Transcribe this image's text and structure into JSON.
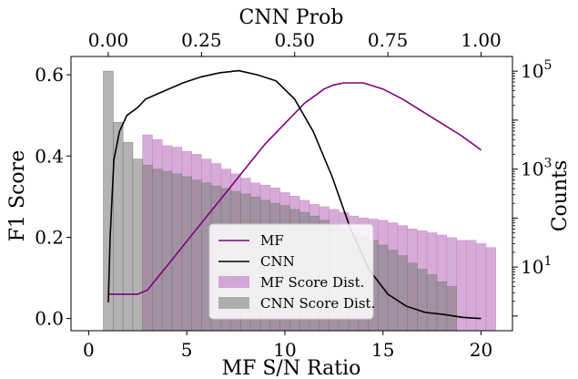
{
  "chart_data": {
    "type": "bar",
    "x_label": "MF S/N Ratio",
    "y_label_left": "F1 Score",
    "y_label_right": "Counts",
    "x_label_top": "CNN Prob",
    "x_ticks": [
      "0",
      "5",
      "10",
      "15",
      "20"
    ],
    "y_ticks_left": [
      "0.0",
      "0.2",
      "0.4",
      "0.6"
    ],
    "x_ticks_top": [
      "0.00",
      "0.25",
      "0.50",
      "0.75",
      "1.00"
    ],
    "y_ticks_right": [
      {
        "base": "10",
        "exp": "1"
      },
      {
        "base": "10",
        "exp": "3"
      },
      {
        "base": "10",
        "exp": "5"
      }
    ],
    "xlim": [
      -0.9,
      21.6
    ],
    "ylim_left": [
      -0.03,
      0.645
    ],
    "ylim_right_log10": [
      -0.3,
      5.3
    ],
    "legend_position": "lower-center",
    "series": [
      {
        "name": "MF",
        "kind": "line",
        "axis": "left",
        "color": "#800080",
        "x": [
          1.0,
          2.5,
          3.0,
          3.5,
          4.0,
          5.0,
          6.0,
          7.0,
          8.0,
          9.0,
          10.0,
          11.0,
          12.0,
          12.5,
          13.0,
          14.0,
          15.0,
          16.0,
          17.0,
          18.0,
          19.0,
          20.0
        ],
        "y": [
          0.06,
          0.06,
          0.07,
          0.1,
          0.13,
          0.19,
          0.25,
          0.31,
          0.37,
          0.43,
          0.48,
          0.53,
          0.565,
          0.575,
          0.58,
          0.58,
          0.565,
          0.54,
          0.51,
          0.48,
          0.45,
          0.415
        ]
      },
      {
        "name": "CNN",
        "kind": "line",
        "axis": "top-left",
        "color": "#000000",
        "x": [
          0.0,
          0.005,
          0.015,
          0.03,
          0.05,
          0.08,
          0.1,
          0.15,
          0.2,
          0.25,
          0.3,
          0.35,
          0.4,
          0.45,
          0.5,
          0.55,
          0.6,
          0.65,
          0.7,
          0.75,
          0.8,
          0.85,
          0.9,
          0.95,
          0.98,
          1.0
        ],
        "y": [
          0.04,
          0.2,
          0.39,
          0.46,
          0.5,
          0.52,
          0.54,
          0.56,
          0.58,
          0.595,
          0.605,
          0.61,
          0.6,
          0.585,
          0.54,
          0.46,
          0.35,
          0.22,
          0.12,
          0.06,
          0.03,
          0.015,
          0.01,
          0.003,
          0.001,
          0.0
        ]
      },
      {
        "name": "MF Score Dist.",
        "kind": "hist",
        "axis": "right",
        "color": "#c88bc8",
        "bin_width": 0.5,
        "x_start": 2.75,
        "counts": [
          5000,
          4000,
          3000,
          2800,
          2300,
          2000,
          1600,
          1300,
          1000,
          800,
          650,
          520,
          470,
          410,
          330,
          280,
          230,
          190,
          170,
          150,
          130,
          110,
          100,
          95,
          90,
          80,
          70,
          60,
          55,
          50,
          45,
          40,
          35,
          35,
          30,
          25
        ]
      },
      {
        "name": "CNN Score Dist.",
        "kind": "hist",
        "axis": "right",
        "color": "#808080",
        "bin_width": 0.5,
        "x_start": 0.75,
        "counts": [
          100000,
          9000,
          3500,
          1600,
          1200,
          1000,
          900,
          800,
          700,
          600,
          520,
          450,
          400,
          350,
          310,
          270,
          230,
          200,
          180,
          150,
          130,
          110,
          90,
          75,
          60,
          50,
          42,
          35,
          28,
          22,
          17,
          12,
          9,
          7,
          5,
          4
        ]
      }
    ]
  }
}
